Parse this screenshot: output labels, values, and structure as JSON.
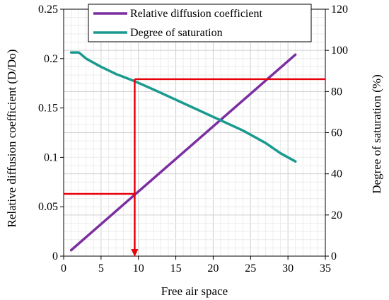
{
  "chart_data": {
    "type": "line",
    "x_range": [
      0,
      35
    ],
    "x_ticks": [
      0,
      5,
      10,
      15,
      20,
      25,
      30,
      35
    ],
    "y_left_range": [
      0,
      0.25
    ],
    "y_left_ticks": [
      "0",
      "0.05",
      "0.1",
      "0.15",
      "0.2",
      "0.25"
    ],
    "y_left_tick_values": [
      0,
      0.05,
      0.1,
      0.15,
      0.2,
      0.25
    ],
    "y_right_range": [
      0,
      120
    ],
    "y_right_ticks": [
      "0",
      "20",
      "40",
      "60",
      "80",
      "100",
      "120"
    ],
    "y_right_tick_values": [
      0,
      20,
      40,
      60,
      80,
      100,
      120
    ],
    "xlabel": "Free air space",
    "ylabel_left": "Relative diffusion coefficient (D/Do)",
    "ylabel_right": "Degree of saturation (%)",
    "grid": true,
    "legend_position": "top",
    "series": [
      {
        "name": "Relative diffusion coefficient",
        "axis": "left",
        "color": "#7b2fa0",
        "x": [
          1,
          31
        ],
        "y": [
          0.006,
          0.204
        ]
      },
      {
        "name": "Degree of saturation",
        "axis": "right",
        "color": "#1a9a8f",
        "x": [
          1,
          1.5,
          2,
          2.2,
          3,
          5,
          7,
          9.5,
          12,
          15,
          18,
          21,
          24,
          27,
          29,
          31
        ],
        "y": [
          99,
          99,
          99,
          98.5,
          96,
          92,
          88.5,
          85,
          81,
          76,
          71,
          66,
          61,
          55,
          50,
          46
        ]
      }
    ],
    "annotations": [
      {
        "type": "guide-lines",
        "color": "#e8000b",
        "x": 9.5,
        "y_left": 0.063,
        "y_right": 86
      }
    ]
  }
}
